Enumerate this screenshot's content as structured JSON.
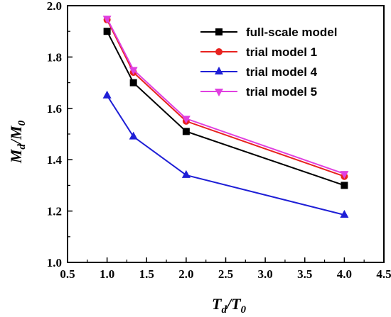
{
  "chart_data": {
    "type": "line",
    "x": [
      1.0,
      1.333,
      2.0,
      4.0
    ],
    "xlim": [
      0.5,
      4.5
    ],
    "ylim": [
      1.0,
      2.0
    ],
    "xticks": [
      "0.5",
      "1.0",
      "1.5",
      "2.0",
      "2.5",
      "3.0",
      "3.5",
      "4.0",
      "4.5"
    ],
    "yticks": [
      "1.0",
      "1.2",
      "1.4",
      "1.6",
      "1.8",
      "2.0"
    ],
    "xlabel": {
      "main": "T",
      "sub1": "d",
      "slash": "/",
      "main2": "T",
      "sub2": "0"
    },
    "ylabel": {
      "main": "M",
      "sub1": "d",
      "slash": "/",
      "main2": "M",
      "sub2": "0"
    },
    "grid": false,
    "legend_position": "top-right",
    "series": [
      {
        "name": "full-scale model",
        "color": "#000000",
        "marker": "square",
        "values": [
          1.9,
          1.7,
          1.51,
          1.3
        ]
      },
      {
        "name": "trial model 1",
        "color": "#e8221f",
        "marker": "circle",
        "values": [
          1.945,
          1.74,
          1.55,
          1.335
        ]
      },
      {
        "name": "trial model 4",
        "color": "#1f1fd6",
        "marker": "triangle-up",
        "values": [
          1.65,
          1.49,
          1.34,
          1.185
        ]
      },
      {
        "name": "trial model 5",
        "color": "#e040e0",
        "marker": "triangle-down",
        "values": [
          1.95,
          1.75,
          1.56,
          1.345
        ]
      }
    ]
  }
}
